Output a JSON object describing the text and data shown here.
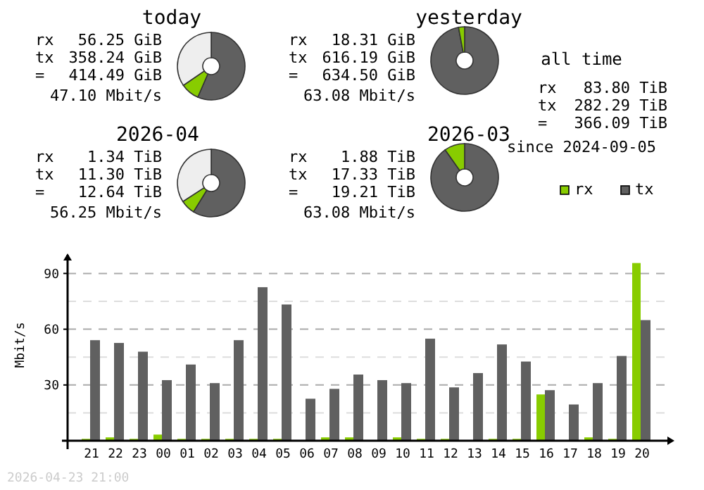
{
  "chart_data": [
    {
      "type": "donut",
      "title": "today",
      "categories": [
        null,
        null,
        null
      ],
      "values": [
        56.5,
        8.9,
        34.6
      ],
      "colors": [
        "#606060",
        "#88cc00",
        "#eeeeee"
      ],
      "annotations": [
        "rx",
        "56.25 GiB",
        "tx",
        "358.24 GiB",
        "=",
        "414.49 GiB",
        "47.10 Mbit/s"
      ]
    },
    {
      "type": "donut",
      "title": "yesterday",
      "categories": [
        null,
        null
      ],
      "values": [
        97.1,
        2.9
      ],
      "colors": [
        "#606060",
        "#88cc00"
      ],
      "annotations": [
        "rx",
        "18.31 GiB",
        "tx",
        "616.19 GiB",
        "=",
        "634.50 GiB",
        "63.08 Mbit/s"
      ]
    },
    {
      "type": "other",
      "title": "all time",
      "annotations": [
        "rx",
        "83.80 TiB",
        "tx",
        "282.29 TiB",
        "=",
        "366.09 TiB",
        "since 2024-09-05"
      ]
    },
    {
      "type": "donut",
      "title": "2026-04",
      "categories": [
        null,
        null,
        null
      ],
      "values": [
        58.8,
        7.0,
        34.2
      ],
      "colors": [
        "#606060",
        "#88cc00",
        "#eeeeee"
      ],
      "annotations": [
        "rx",
        "1.34 TiB",
        "tx",
        "11.30 TiB",
        "=",
        "12.64 TiB",
        "56.25 Mbit/s"
      ]
    },
    {
      "type": "donut",
      "title": "2026-03",
      "categories": [
        null,
        null
      ],
      "values": [
        90.2,
        9.8
      ],
      "colors": [
        "#606060",
        "#88cc00"
      ],
      "annotations": [
        "rx",
        "1.88 TiB",
        "tx",
        "17.33 TiB",
        "=",
        "19.21 TiB",
        "63.08 Mbit/s"
      ]
    },
    {
      "type": "bar",
      "ylabel": "Mbit/s",
      "categories": [
        "21",
        "22",
        "23",
        "00",
        "01",
        "02",
        "03",
        "04",
        "05",
        "06",
        "07",
        "08",
        "09",
        "10",
        "11",
        "12",
        "13",
        "14",
        "15",
        "16",
        "17",
        "18",
        "19",
        "20"
      ],
      "series": [
        {
          "name": "rx",
          "color": "#88cc00",
          "values": [
            1,
            1.8,
            1,
            3.3,
            1,
            1,
            1,
            1,
            1,
            0,
            1.8,
            1.8,
            0,
            1.8,
            1,
            1,
            0,
            1,
            1,
            24.9,
            0,
            1.8,
            1,
            95.6
          ]
        },
        {
          "name": "tx",
          "color": "#606060",
          "values": [
            54.1,
            52.6,
            47.9,
            32.6,
            41.0,
            31.0,
            54.1,
            82.6,
            73.3,
            22.6,
            27.9,
            35.6,
            32.6,
            31.0,
            54.9,
            28.7,
            36.4,
            51.8,
            42.6,
            27.2,
            19.5,
            31.0,
            45.6,
            64.9
          ]
        }
      ],
      "ylim": [
        0,
        100
      ],
      "yticks": [
        {
          "value": 15,
          "label": null
        },
        30,
        {
          "value": 45,
          "label": null
        },
        60,
        {
          "value": 75,
          "label": null
        },
        90
      ],
      "grid": "y",
      "legend": "top right",
      "annotations": [
        "2026-04-23 21:00"
      ]
    }
  ]
}
